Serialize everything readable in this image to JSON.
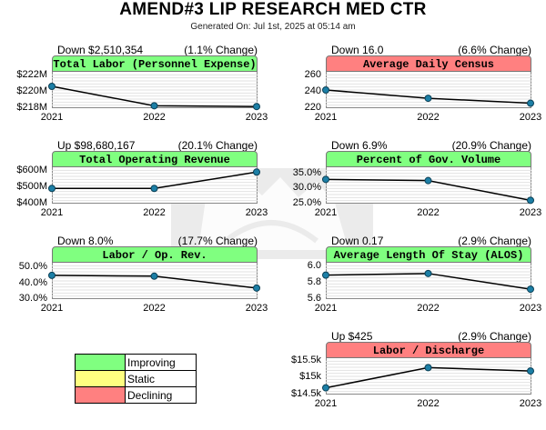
{
  "header": {
    "title": "AMEND#3 LIP RESEARCH MED CTR",
    "generated": "Generated On: Jul 1st, 2025 at 05:14 am"
  },
  "colors": {
    "improving": "#80ff80",
    "static": "#ffff80",
    "declining": "#ff8080",
    "line": "#000000",
    "marker": "#1c7fa6"
  },
  "legend": {
    "items": [
      {
        "label": "Improving",
        "color": "#80ff80"
      },
      {
        "label": "Static",
        "color": "#ffff80"
      },
      {
        "label": "Declining",
        "color": "#ff8080"
      }
    ]
  },
  "chart_data": [
    {
      "type": "line",
      "title": "Total Labor (Personnel Expense)",
      "change_left": "Down $2,510,354",
      "change_right": "(1.1% Change)",
      "status": "improving",
      "x": [
        "2021",
        "2022",
        "2023"
      ],
      "values": [
        220.7,
        218.3,
        218.2
      ],
      "ylim": [
        218,
        222.5
      ],
      "yticks": [
        218,
        220,
        222
      ],
      "ytick_labels": [
        "$218M",
        "$220M",
        "$222M"
      ]
    },
    {
      "type": "line",
      "title": "Average Daily Census",
      "change_left": "Down 16.0",
      "change_right": "(6.6% Change)",
      "status": "declining",
      "x": [
        "2021",
        "2022",
        "2023"
      ],
      "values": [
        242,
        232,
        226
      ],
      "ylim": [
        220,
        264
      ],
      "yticks": [
        220,
        240,
        260
      ],
      "ytick_labels": [
        "220",
        "240",
        "260"
      ]
    },
    {
      "type": "line",
      "title": "Total Operating Revenue",
      "change_left": "Up $98,680,167",
      "change_right": "(20.1% Change)",
      "status": "improving",
      "x": [
        "2021",
        "2022",
        "2023"
      ],
      "values": [
        492,
        492,
        591
      ],
      "ylim": [
        400,
        620
      ],
      "yticks": [
        400,
        500,
        600
      ],
      "ytick_labels": [
        "$400M",
        "$500M",
        "$600M"
      ]
    },
    {
      "type": "line",
      "title": "Percent of Gov. Volume",
      "change_left": "Down 6.9%",
      "change_right": "(20.9% Change)",
      "status": "improving",
      "x": [
        "2021",
        "2022",
        "2023"
      ],
      "values": [
        33.0,
        32.6,
        26.1
      ],
      "ylim": [
        25,
        37
      ],
      "yticks": [
        25,
        30,
        35
      ],
      "ytick_labels": [
        "25.0%",
        "30.0%",
        "35.0%"
      ]
    },
    {
      "type": "line",
      "title": "Labor / Op. Rev.",
      "change_left": "Down 8.0%",
      "change_right": "(17.7% Change)",
      "status": "improving",
      "x": [
        "2021",
        "2022",
        "2023"
      ],
      "values": [
        45.0,
        44.5,
        37.0
      ],
      "ylim": [
        30,
        53
      ],
      "yticks": [
        30,
        40,
        50
      ],
      "ytick_labels": [
        "30.0%",
        "40.0%",
        "50.0%"
      ]
    },
    {
      "type": "line",
      "title": "Average Length Of Stay (ALOS)",
      "change_left": "Down 0.17",
      "change_right": "(2.9% Change)",
      "status": "improving",
      "x": [
        "2021",
        "2022",
        "2023"
      ],
      "values": [
        5.89,
        5.91,
        5.72
      ],
      "ylim": [
        5.6,
        6.04
      ],
      "yticks": [
        5.6,
        5.8,
        6.0
      ],
      "ytick_labels": [
        "5.6",
        "5.8",
        "6.0"
      ]
    },
    {
      "type": "line",
      "title": "Labor / Discharge",
      "change_left": "Up $425",
      "change_right": "(2.9% Change)",
      "status": "declining",
      "x": [
        "2021",
        "2022",
        "2023"
      ],
      "values": [
        14.7,
        15.3,
        15.2
      ],
      "ylim": [
        14.5,
        15.58
      ],
      "yticks": [
        14.5,
        15.0,
        15.5
      ],
      "ytick_labels": [
        "$14.5k",
        "$15k",
        "$15.5k"
      ]
    }
  ]
}
